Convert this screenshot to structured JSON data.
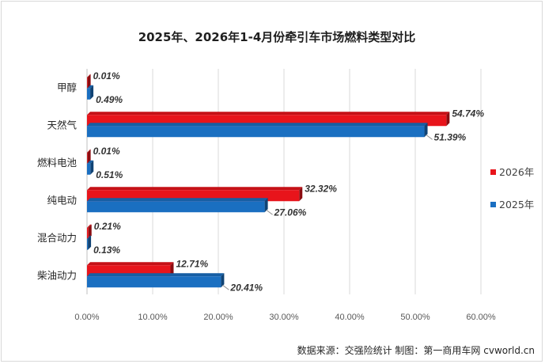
{
  "chart_data": {
    "type": "bar",
    "orientation": "horizontal",
    "title": "2025年、2026年1-4月份牵引车市场燃料类型对比",
    "categories": [
      "甲醇",
      "天然气",
      "燃料电池",
      "纯电动",
      "混合动力",
      "柴油动力"
    ],
    "series": [
      {
        "name": "2026年",
        "color": "#e8141b",
        "values": [
          0.01,
          54.74,
          0.01,
          32.32,
          0.21,
          12.71
        ],
        "labels": [
          "0.01%",
          "54.74%",
          "0.01%",
          "32.32%",
          "0.21%",
          "12.71%"
        ]
      },
      {
        "name": "2025年",
        "color": "#1a6fc1",
        "values": [
          0.49,
          51.39,
          0.51,
          27.06,
          0.13,
          20.41
        ],
        "labels": [
          "0.49%",
          "51.39%",
          "0.51%",
          "27.06%",
          "0.13%",
          "20.41%"
        ]
      }
    ],
    "xlim": [
      0,
      60
    ],
    "xticks": [
      "0.00%",
      "10.00%",
      "20.00%",
      "30.00%",
      "40.00%",
      "50.00%",
      "60.00%"
    ],
    "grid": true,
    "legend_position": "right"
  },
  "source_note": "数据来源：交强险统计    制图：第一商用车网 cvworld.cn"
}
